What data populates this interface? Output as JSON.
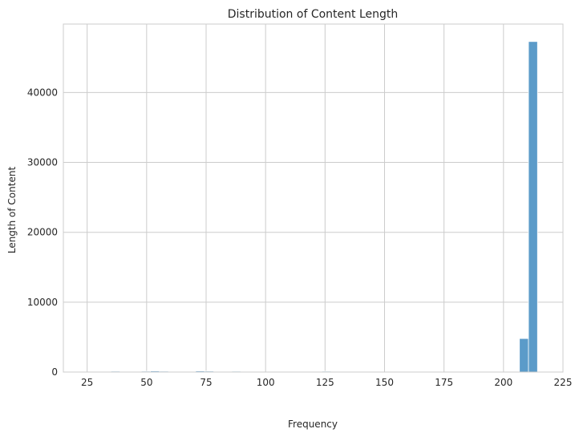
{
  "chart_data": {
    "type": "bar",
    "title": "Distribution of Content Length",
    "xlabel": "Frequency",
    "ylabel": "Length of Content",
    "xlim": [
      15,
      225
    ],
    "ylim": [
      0,
      49800
    ],
    "xticks": [
      25,
      50,
      75,
      100,
      125,
      150,
      175,
      200,
      225
    ],
    "yticks": [
      0,
      10000,
      20000,
      30000,
      40000
    ],
    "grid": true,
    "bar_color": "#5b9bc9",
    "bin_width": 3.8,
    "series": [
      {
        "values": [
          {
            "x": 36.9,
            "y": 120
          },
          {
            "x": 49.7,
            "y": 120
          },
          {
            "x": 53.5,
            "y": 150
          },
          {
            "x": 57.3,
            "y": 120
          },
          {
            "x": 72.5,
            "y": 150
          },
          {
            "x": 76.3,
            "y": 130
          },
          {
            "x": 87.7,
            "y": 110
          },
          {
            "x": 125.6,
            "y": 100
          },
          {
            "x": 208.6,
            "y": 4800
          },
          {
            "x": 212.4,
            "y": 47300
          }
        ]
      }
    ]
  }
}
